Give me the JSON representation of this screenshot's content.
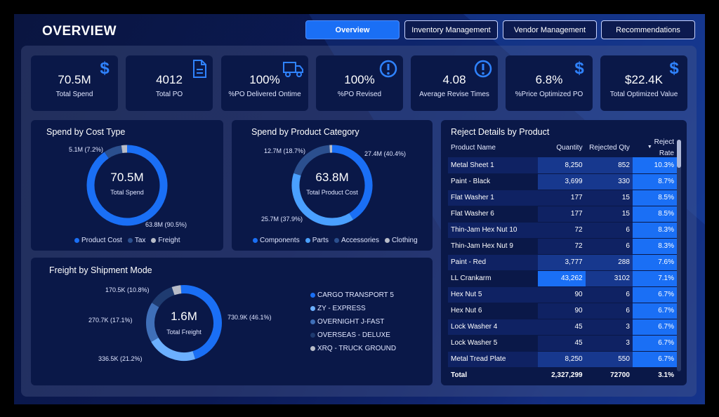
{
  "header": {
    "title": "OVERVIEW"
  },
  "nav": [
    {
      "label": "Overview",
      "active": true
    },
    {
      "label": "Inventory Management",
      "active": false
    },
    {
      "label": "Vendor Management",
      "active": false
    },
    {
      "label": "Recommendations",
      "active": false
    }
  ],
  "kpis": [
    {
      "value": "70.5M",
      "label": "Total Spend",
      "icon": "dollar-icon"
    },
    {
      "value": "4012",
      "label": "Total PO",
      "icon": "document-icon"
    },
    {
      "value": "100%",
      "label": "%PO Delivered Ontime",
      "icon": "truck-icon"
    },
    {
      "value": "100%",
      "label": "%PO Revised",
      "icon": "alert-icon"
    },
    {
      "value": "4.08",
      "label": "Average Revise Times",
      "icon": "alert-icon"
    },
    {
      "value": "6.8%",
      "label": "%Price Optimized PO",
      "icon": "dollar-icon"
    },
    {
      "value": "$22.4K",
      "label": "Total Optimized Value",
      "icon": "dollar-icon"
    }
  ],
  "spend_cost": {
    "title": "Spend by Cost Type",
    "center_value": "70.5M",
    "center_label": "Total Spend",
    "labels": [
      "5.1M (7.2%)",
      "63.8M (90.5%)"
    ],
    "legend": [
      "Product Cost",
      "Tax",
      "Freight"
    ]
  },
  "spend_category": {
    "title": "Spend by Product Category",
    "center_value": "63.8M",
    "center_label": "Total Product Cost",
    "labels": [
      "12.7M (18.7%)",
      "27.4M (40.4%)",
      "25.7M (37.9%)"
    ],
    "legend": [
      "Components",
      "Parts",
      "Accessories",
      "Clothing"
    ]
  },
  "freight": {
    "title": "Freight by Shipment Mode",
    "center_value": "1.6M",
    "center_label": "Total Freight",
    "labels": [
      "170.5K (10.8%)",
      "730.9K (46.1%)",
      "270.7K (17.1%)",
      "336.5K (21.2%)"
    ],
    "legend": [
      "CARGO TRANSPORT 5",
      "ZY - EXPRESS",
      "OVERNIGHT J-FAST",
      "OVERSEAS - DELUXE",
      "XRQ - TRUCK GROUND"
    ]
  },
  "reject": {
    "title": "Reject Details by Product",
    "columns": [
      "Product Name",
      "Quantity",
      "Rejected Qty",
      "Reject Rate"
    ],
    "rows": [
      [
        "Metal Sheet 1",
        "8,250",
        "852",
        "10.3%"
      ],
      [
        "Paint - Black",
        "3,699",
        "330",
        "8.7%"
      ],
      [
        "Flat Washer 1",
        "177",
        "15",
        "8.5%"
      ],
      [
        "Flat Washer 6",
        "177",
        "15",
        "8.5%"
      ],
      [
        "Thin-Jam Hex Nut 10",
        "72",
        "6",
        "8.3%"
      ],
      [
        "Thin-Jam Hex Nut 9",
        "72",
        "6",
        "8.3%"
      ],
      [
        "Paint - Red",
        "3,777",
        "288",
        "7.6%"
      ],
      [
        "LL Crankarm",
        "43,262",
        "3102",
        "7.1%"
      ],
      [
        "Hex Nut 5",
        "90",
        "6",
        "6.7%"
      ],
      [
        "Hex Nut 6",
        "90",
        "6",
        "6.7%"
      ],
      [
        "Lock Washer 4",
        "45",
        "3",
        "6.7%"
      ],
      [
        "Lock Washer 5",
        "45",
        "3",
        "6.7%"
      ],
      [
        "Metal Tread Plate",
        "8,250",
        "550",
        "6.7%"
      ]
    ],
    "total": [
      "Total",
      "2,327,299",
      "72700",
      "3.1%"
    ]
  },
  "chart_data": [
    {
      "type": "pie",
      "title": "Spend by Cost Type",
      "categories": [
        "Product Cost",
        "Tax",
        "Freight"
      ],
      "values": [
        63.8,
        5.1,
        1.6
      ],
      "colors": [
        "#1a6ff5",
        "#2b4f8e",
        "#b8bcc8"
      ]
    },
    {
      "type": "pie",
      "title": "Spend by Product Category",
      "categories": [
        "Components",
        "Parts",
        "Accessories",
        "Clothing"
      ],
      "values": [
        27.4,
        25.7,
        12.7,
        0.7
      ],
      "colors": [
        "#1a6ff5",
        "#4aa0ff",
        "#2b4f8e",
        "#b8bcc8"
      ]
    },
    {
      "type": "pie",
      "title": "Freight by Shipment Mode",
      "categories": [
        "CARGO TRANSPORT 5",
        "ZY - EXPRESS",
        "OVERNIGHT J-FAST",
        "OVERSEAS - DELUXE",
        "XRQ - TRUCK GROUND"
      ],
      "values": [
        730.9,
        336.5,
        270.7,
        170.5,
        60
      ],
      "colors": [
        "#1a6ff5",
        "#6cb0ff",
        "#3f6fb8",
        "#1f3b70",
        "#b8bcc8"
      ]
    }
  ]
}
